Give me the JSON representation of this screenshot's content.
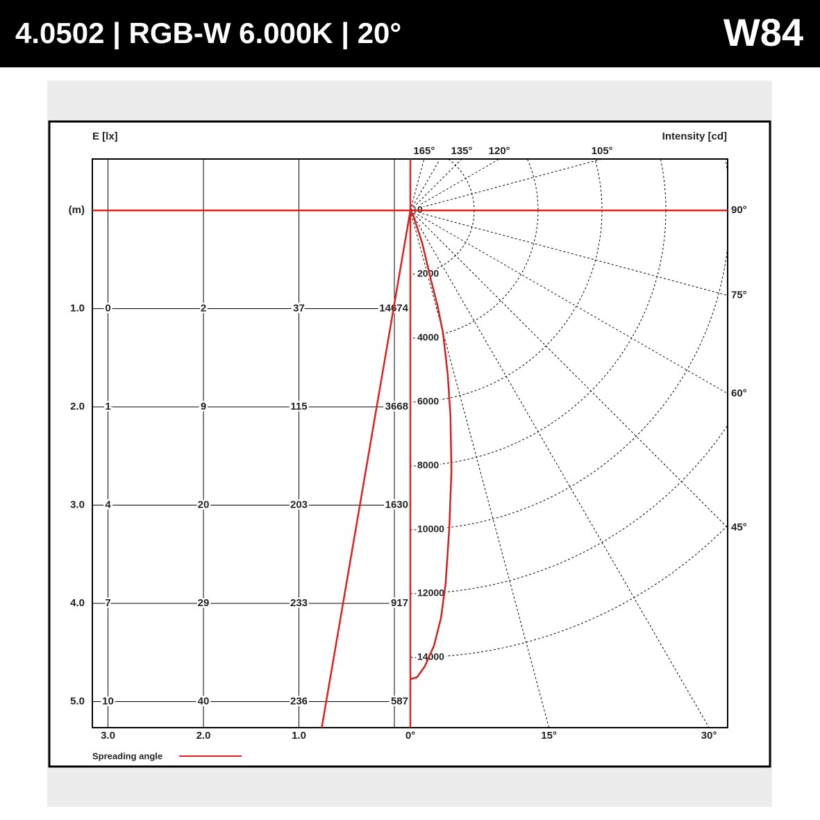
{
  "header": {
    "title": "4.0502 | RGB-W 6.000K | 20°",
    "code": "W84"
  },
  "chart_data": {
    "type": "photometric",
    "left_label": "E [lx]",
    "right_label": "Intensity [cd]",
    "depth_unit": "(m)",
    "depths": [
      {
        "value": 1,
        "label": "1.0"
      },
      {
        "value": 2,
        "label": "2.0"
      },
      {
        "value": 3,
        "label": "3.0"
      },
      {
        "value": 4,
        "label": "4.0"
      },
      {
        "value": 5,
        "label": "5.0"
      }
    ],
    "columns": [
      3,
      2,
      1,
      0
    ],
    "lateral_ticks": [
      {
        "value": 3,
        "label": "3.0"
      },
      {
        "value": 2,
        "label": "2.0"
      },
      {
        "value": 1,
        "label": "1.0"
      }
    ],
    "illuminance": [
      [
        0,
        2,
        37,
        14674
      ],
      [
        1,
        9,
        115,
        3668
      ],
      [
        4,
        20,
        203,
        1630
      ],
      [
        7,
        29,
        233,
        917
      ],
      [
        10,
        40,
        236,
        587
      ]
    ],
    "intensity_ticks": [
      0,
      2000,
      4000,
      6000,
      8000,
      10000,
      12000,
      14000
    ],
    "rays": [
      15,
      30,
      45,
      60,
      75,
      90,
      105,
      120,
      135,
      150,
      165
    ],
    "angle_ticks": [
      {
        "value": 165,
        "label": "165°"
      },
      {
        "value": 135,
        "label": "135°"
      },
      {
        "value": 120,
        "label": "120°"
      },
      {
        "value": 105,
        "label": "105°"
      },
      {
        "value": 90,
        "label": "90°"
      },
      {
        "value": 75,
        "label": "75°"
      },
      {
        "value": 60,
        "label": "60°"
      },
      {
        "value": 45,
        "label": "45°"
      },
      {
        "value": 30,
        "label": "30°"
      },
      {
        "value": 15,
        "label": "15°"
      },
      {
        "value": 0,
        "label": "0°"
      }
    ],
    "curve": {
      "color": "#d42020",
      "angles": [
        0,
        0.8,
        1.8,
        3.1,
        4.3,
        5.4,
        7,
        8.9,
        11,
        12.8,
        14.9,
        15.9,
        16.6,
        19.9,
        29.7
      ],
      "values": [
        14674,
        14620,
        14290,
        13650,
        12800,
        11730,
        10010,
        8300,
        6580,
        5290,
        3980,
        3100,
        2200,
        1090,
        175
      ]
    },
    "spreading_angle": 20,
    "spread_color": "#e0201c",
    "legend": "Spreading angle"
  }
}
